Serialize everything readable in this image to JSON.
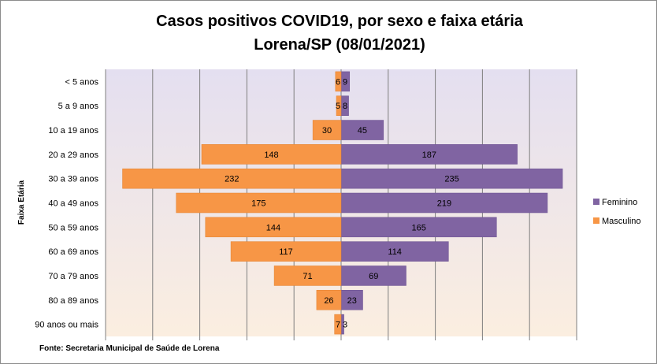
{
  "chart_data": {
    "type": "bar",
    "orientation": "horizontal",
    "layout": "population-pyramid",
    "title": "Casos positivos COVID19, por sexo e faixa etária",
    "subtitle": "Lorena/SP (08/01/2021)",
    "ylabel": "Faixa Etária",
    "source": "Fonte: Secretaria Municipal  de Saúde de Lorena",
    "categories": [
      "< 5 anos",
      "5 a 9 anos",
      "10 a 19 anos",
      "20 a 29 anos",
      "30 a 39 anos",
      "40 a 49 anos",
      "50 a 59 anos",
      "60 a 69 anos ",
      "70 a 79 anos",
      "80 a 89 anos",
      "90 anos ou mais"
    ],
    "series": [
      {
        "name": "Feminino",
        "color": "#8064a2",
        "side": "right",
        "values": [
          9,
          8,
          45,
          187,
          235,
          219,
          165,
          114,
          69,
          23,
          3
        ]
      },
      {
        "name": "Masculino",
        "color": "#f79646",
        "side": "left",
        "values": [
          6,
          5,
          30,
          148,
          232,
          175,
          144,
          117,
          71,
          26,
          7
        ]
      }
    ],
    "xlim": [
      -250,
      250
    ],
    "gridlines": [
      -250,
      -200,
      -150,
      -100,
      -50,
      0,
      50,
      100,
      150,
      200,
      250
    ],
    "grid": true,
    "legend_position": "right",
    "background_gradient": [
      "#e4dff0",
      "#fbeee0"
    ]
  }
}
